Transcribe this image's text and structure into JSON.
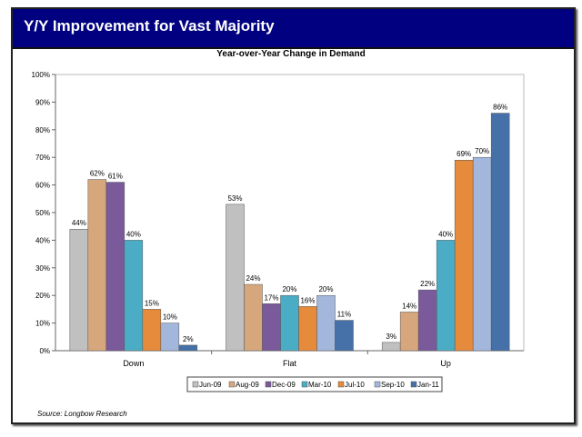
{
  "slide": {
    "title": "Y/Y Improvement for Vast Majority",
    "source": "Source: Longbow Research"
  },
  "chart_data": {
    "type": "bar",
    "title": "Year-over-Year Change in Demand",
    "xlabel": "",
    "ylabel": "",
    "categories": [
      "Down",
      "Flat",
      "Up"
    ],
    "ylim": [
      0,
      100
    ],
    "yticks": [
      "0%",
      "10%",
      "20%",
      "30%",
      "40%",
      "50%",
      "60%",
      "70%",
      "80%",
      "90%",
      "100%"
    ],
    "legend_position": "bottom",
    "grid": false,
    "series": [
      {
        "name": "Jun-09",
        "color": "#c0c0c0",
        "values": [
          44,
          53,
          3
        ]
      },
      {
        "name": "Aug-09",
        "color": "#d6a77c",
        "values": [
          62,
          24,
          14
        ]
      },
      {
        "name": "Dec-09",
        "color": "#7a5a9b",
        "values": [
          61,
          17,
          22
        ]
      },
      {
        "name": "Mar-10",
        "color": "#4badc5",
        "values": [
          40,
          20,
          40
        ]
      },
      {
        "name": "Jul-10",
        "color": "#e68a3c",
        "values": [
          15,
          16,
          69
        ]
      },
      {
        "name": "Sep-10",
        "color": "#a3b7dd",
        "values": [
          10,
          20,
          70
        ]
      },
      {
        "name": "Jan-11",
        "color": "#4571a8",
        "values": [
          2,
          11,
          86
        ]
      }
    ]
  }
}
